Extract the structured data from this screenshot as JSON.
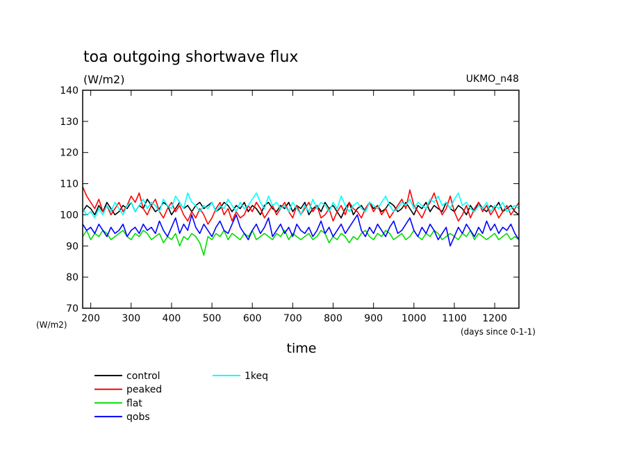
{
  "chart_data": {
    "type": "line",
    "title": "toa outgoing shortwave flux",
    "units_label": "(W/m2)",
    "model_label": "UKMO_n48",
    "y_axis_unit": "(W/m2)",
    "x_axis_unit": "(days since 0-1-1)",
    "xlabel": "time",
    "ylabel": "",
    "xlim": [
      180,
      1260
    ],
    "ylim": [
      70,
      140
    ],
    "x_ticks": [
      200,
      300,
      400,
      500,
      600,
      700,
      800,
      900,
      1000,
      1100,
      1200
    ],
    "y_ticks": [
      70,
      80,
      90,
      100,
      110,
      120,
      130,
      140
    ],
    "grid": false,
    "legend_placement": "bottom-left",
    "series": [
      {
        "name": "control",
        "color": "#000000",
        "x_start": 180,
        "x_step": 10,
        "values": [
          101,
          103,
          102,
          100,
          103,
          101,
          104,
          102,
          100,
          101,
          103,
          102,
          104,
          101,
          103,
          102,
          105,
          103,
          101,
          102,
          104,
          103,
          100,
          102,
          104,
          102,
          103,
          101,
          103,
          104,
          102,
          103,
          104,
          101,
          102,
          104,
          103,
          101,
          103,
          102,
          104,
          101,
          103,
          102,
          100,
          103,
          104,
          102,
          101,
          103,
          102,
          104,
          101,
          103,
          102,
          104,
          100,
          102,
          103,
          101,
          104,
          102,
          103,
          101,
          99,
          102,
          104,
          100,
          102,
          103,
          101,
          104,
          102,
          103,
          101,
          102,
          104,
          103,
          101,
          102,
          104,
          102,
          100,
          103,
          102,
          104,
          101,
          103,
          102,
          101,
          104,
          102,
          101,
          103,
          102,
          100,
          103,
          101,
          104,
          102,
          101,
          103,
          102,
          104,
          101,
          102,
          103,
          101,
          100
        ]
      },
      {
        "name": "peaked",
        "color": "#ff0000",
        "x_start": 180,
        "x_step": 10,
        "values": [
          109,
          106,
          104,
          102,
          105,
          101,
          103,
          100,
          102,
          104,
          101,
          103,
          106,
          104,
          107,
          102,
          100,
          103,
          105,
          101,
          99,
          102,
          104,
          101,
          103,
          100,
          98,
          101,
          99,
          102,
          100,
          97,
          99,
          102,
          104,
          100,
          102,
          98,
          101,
          99,
          100,
          103,
          101,
          104,
          102,
          99,
          101,
          103,
          100,
          102,
          104,
          101,
          99,
          103,
          100,
          102,
          104,
          101,
          103,
          99,
          100,
          102,
          98,
          101,
          103,
          100,
          104,
          102,
          101,
          99,
          102,
          104,
          101,
          103,
          100,
          102,
          99,
          101,
          103,
          105,
          102,
          108,
          103,
          101,
          99,
          102,
          104,
          107,
          103,
          100,
          102,
          106,
          101,
          98,
          100,
          103,
          99,
          102,
          104,
          101,
          103,
          100,
          102,
          99,
          101,
          103,
          100,
          102,
          104
        ]
      },
      {
        "name": "flat",
        "color": "#00dd00",
        "x_start": 180,
        "x_step": 10,
        "values": [
          93,
          95,
          92,
          94,
          93,
          95,
          94,
          92,
          93,
          94,
          95,
          93,
          92,
          94,
          93,
          95,
          94,
          92,
          93,
          94,
          91,
          93,
          92,
          94,
          90,
          93,
          92,
          94,
          93,
          91,
          87,
          93,
          92,
          94,
          93,
          95,
          92,
          94,
          93,
          92,
          94,
          93,
          95,
          92,
          93,
          94,
          93,
          92,
          94,
          93,
          95,
          92,
          94,
          93,
          92,
          93,
          94,
          92,
          93,
          95,
          94,
          91,
          93,
          92,
          94,
          93,
          91,
          93,
          92,
          94,
          95,
          93,
          92,
          94,
          93,
          95,
          94,
          92,
          93,
          94,
          92,
          93,
          95,
          93,
          92,
          94,
          93,
          95,
          94,
          92,
          93,
          94,
          93,
          92,
          94,
          93,
          95,
          92,
          94,
          93,
          92,
          93,
          94,
          92,
          93,
          94,
          92,
          93,
          92
        ]
      },
      {
        "name": "qobs",
        "color": "#0000ff",
        "x_start": 180,
        "x_step": 10,
        "values": [
          97,
          95,
          96,
          94,
          97,
          95,
          93,
          96,
          94,
          95,
          97,
          93,
          95,
          96,
          94,
          97,
          95,
          96,
          94,
          98,
          95,
          93,
          96,
          99,
          94,
          97,
          95,
          100,
          96,
          94,
          97,
          95,
          93,
          96,
          98,
          95,
          94,
          97,
          100,
          96,
          94,
          92,
          95,
          97,
          94,
          96,
          99,
          93,
          95,
          97,
          94,
          96,
          93,
          97,
          95,
          94,
          96,
          93,
          95,
          98,
          94,
          96,
          93,
          95,
          97,
          94,
          96,
          98,
          100,
          95,
          93,
          96,
          94,
          97,
          95,
          93,
          96,
          98,
          94,
          95,
          97,
          99,
          95,
          93,
          96,
          94,
          97,
          95,
          92,
          94,
          96,
          90,
          93,
          96,
          94,
          97,
          95,
          93,
          96,
          94,
          98,
          95,
          97,
          94,
          96,
          95,
          97,
          94,
          92
        ]
      },
      {
        "name": "1keq",
        "color": "#00ffff",
        "x_start": 180,
        "x_step": 10,
        "values": [
          102,
          100,
          101,
          99,
          102,
          100,
          103,
          101,
          104,
          102,
          100,
          103,
          104,
          101,
          103,
          105,
          102,
          104,
          103,
          101,
          105,
          103,
          102,
          106,
          104,
          102,
          107,
          104,
          103,
          101,
          103,
          102,
          104,
          101,
          103,
          102,
          105,
          103,
          101,
          104,
          102,
          103,
          105,
          107,
          104,
          102,
          106,
          103,
          104,
          102,
          103,
          101,
          104,
          102,
          100,
          103,
          101,
          105,
          102,
          104,
          103,
          101,
          104,
          102,
          106,
          103,
          101,
          103,
          104,
          102,
          101,
          104,
          103,
          102,
          104,
          106,
          103,
          101,
          102,
          104,
          103,
          105,
          102,
          104,
          103,
          102,
          105,
          104,
          106,
          103,
          104,
          102,
          105,
          107,
          103,
          104,
          102,
          101,
          103,
          102,
          104,
          101,
          103,
          102,
          104,
          101,
          102,
          103,
          102
        ]
      }
    ]
  }
}
